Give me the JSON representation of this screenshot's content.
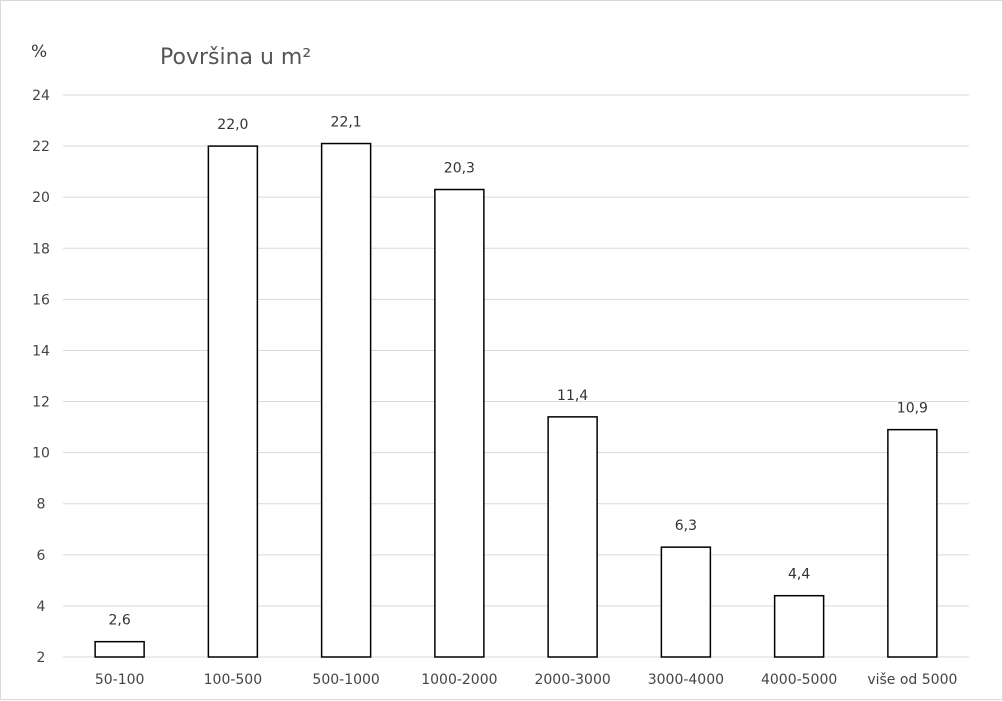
{
  "chart_data": {
    "type": "bar",
    "title": "Površina u m²",
    "ylabel": "%",
    "xlabel": "",
    "ylim": [
      2,
      24
    ],
    "yticks": [
      2,
      4,
      6,
      8,
      10,
      12,
      14,
      16,
      18,
      20,
      22,
      24
    ],
    "grid": true,
    "categories": [
      "50-100",
      "100-500",
      "500-1000",
      "1000-2000",
      "2000-3000",
      "3000-4000",
      "4000-5000",
      "više od 5000"
    ],
    "values": [
      2.6,
      22.0,
      22.1,
      20.3,
      11.4,
      6.3,
      4.4,
      10.9
    ],
    "data_labels": [
      "2,6",
      "22,0",
      "22,1",
      "20,3",
      "11,4",
      "6,3",
      "4,4",
      "10,9"
    ],
    "colors": {
      "bar_fill": "#ffffff",
      "bar_stroke": "#000000",
      "grid": "#d9d9d9"
    }
  }
}
